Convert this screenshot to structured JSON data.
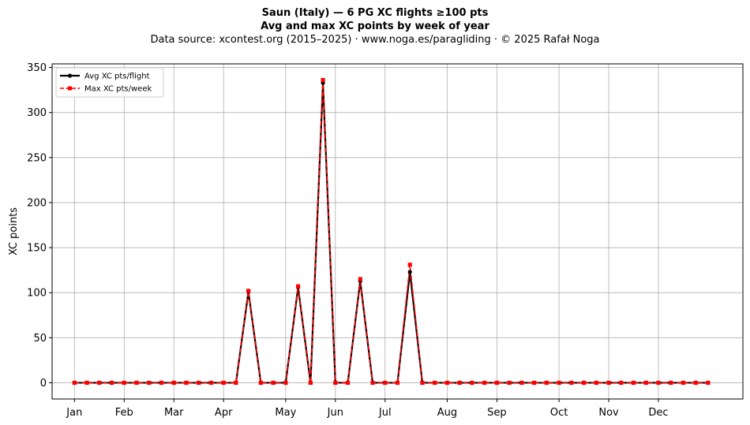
{
  "header": {
    "title": "Saun (Italy)  —  6 PG XC flights ≥100 pts",
    "subtitle": "Avg and max XC points by week of year",
    "source": "Data source: xcontest.org (2015–2025)  ·  www.noga.es/paragliding  ·  © 2025 Rafał Noga"
  },
  "chart_data": {
    "type": "line",
    "title": "Saun (Italy)  —  6 PG XC flights ≥100 pts",
    "subtitle": "Avg and max XC points by week of year",
    "xlabel": "",
    "ylabel": "XC points",
    "xlim": [
      -1.8,
      53.8
    ],
    "ylim": [
      -18,
      354
    ],
    "yticks": [
      0,
      50,
      100,
      150,
      200,
      250,
      300,
      350
    ],
    "month_ticks": [
      {
        "label": "Jan",
        "week": 0
      },
      {
        "label": "Feb",
        "week": 4
      },
      {
        "label": "Mar",
        "week": 8
      },
      {
        "label": "Apr",
        "week": 12
      },
      {
        "label": "May",
        "week": 17
      },
      {
        "label": "Jun",
        "week": 21
      },
      {
        "label": "Jul",
        "week": 25
      },
      {
        "label": "Aug",
        "week": 30
      },
      {
        "label": "Sep",
        "week": 34
      },
      {
        "label": "Oct",
        "week": 39
      },
      {
        "label": "Nov",
        "week": 43
      },
      {
        "label": "Dec",
        "week": 47
      }
    ],
    "grid": true,
    "legend_position": "top-left",
    "x": [
      0,
      1,
      2,
      3,
      4,
      5,
      6,
      7,
      8,
      9,
      10,
      11,
      12,
      13,
      14,
      15,
      16,
      17,
      18,
      19,
      20,
      21,
      22,
      23,
      24,
      25,
      26,
      27,
      28,
      29,
      30,
      31,
      32,
      33,
      34,
      35,
      36,
      37,
      38,
      39,
      40,
      41,
      42,
      43,
      44,
      45,
      46,
      47,
      48,
      49,
      50,
      51
    ],
    "series": [
      {
        "name": "Avg XC pts/flight",
        "color": "#000000",
        "style": "solid",
        "marker": "circle",
        "values": [
          0,
          0,
          0,
          0,
          0,
          0,
          0,
          0,
          0,
          0,
          0,
          0,
          0,
          0,
          101,
          0,
          0,
          0,
          106,
          0,
          333,
          0,
          0,
          113,
          0,
          0,
          0,
          123,
          0,
          0,
          0,
          0,
          0,
          0,
          0,
          0,
          0,
          0,
          0,
          0,
          0,
          0,
          0,
          0,
          0,
          0,
          0,
          0,
          0,
          0,
          0,
          0
        ]
      },
      {
        "name": "Max XC pts/week",
        "color": "#ff0000",
        "style": "dashed",
        "marker": "square",
        "values": [
          0,
          0,
          0,
          0,
          0,
          0,
          0,
          0,
          0,
          0,
          0,
          0,
          0,
          0,
          102,
          0,
          0,
          0,
          107,
          0,
          336,
          0,
          0,
          115,
          0,
          0,
          0,
          131,
          0,
          0,
          0,
          0,
          0,
          0,
          0,
          0,
          0,
          0,
          0,
          0,
          0,
          0,
          0,
          0,
          0,
          0,
          0,
          0,
          0,
          0,
          0,
          0
        ]
      }
    ]
  }
}
